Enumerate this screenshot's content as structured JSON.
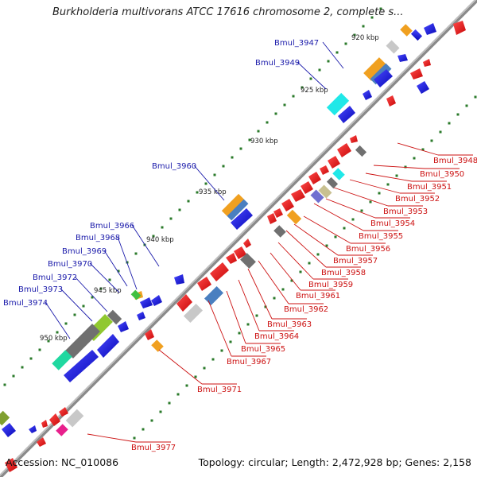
{
  "title": "Burkholderia multivorans ATCC 17616 chromosome 2, complete s...",
  "footer": {
    "accession": "Accession: NC_010086",
    "topology": "Topology: circular; Length: 2,472,928 bp; Genes: 2,158"
  },
  "colors": {
    "backbone": "#7a7a7a",
    "forward": "#1010e0",
    "reverse": "#ee1111",
    "label_forward": "#1a1aaa",
    "label_reverse": "#cc1111",
    "tick": "#2a7a2a"
  },
  "ticks": [
    {
      "label": "920 kbp"
    },
    {
      "label": "925 kbp"
    },
    {
      "label": "930 kbp"
    },
    {
      "label": "935 kbp"
    },
    {
      "label": "940 kbp"
    },
    {
      "label": "945 kbp"
    },
    {
      "label": "950 kbp"
    }
  ],
  "forward_labels": [
    {
      "label": "Bmul_3947"
    },
    {
      "label": "Bmul_3949"
    },
    {
      "label": "Bmul_3960"
    },
    {
      "label": "Bmul_3966"
    },
    {
      "label": "Bmul_3968"
    },
    {
      "label": "Bmul_3969"
    },
    {
      "label": "Bmul_3970"
    },
    {
      "label": "Bmul_3972"
    },
    {
      "label": "Bmul_3973"
    },
    {
      "label": "Bmul_3974"
    }
  ],
  "reverse_labels": [
    {
      "label": "Bmul_3948"
    },
    {
      "label": "Bmul_3950"
    },
    {
      "label": "Bmul_3951"
    },
    {
      "label": "Bmul_3952"
    },
    {
      "label": "Bmul_3953"
    },
    {
      "label": "Bmul_3954"
    },
    {
      "label": "Bmul_3955"
    },
    {
      "label": "Bmul_3956"
    },
    {
      "label": "Bmul_3957"
    },
    {
      "label": "Bmul_3958"
    },
    {
      "label": "Bmul_3959"
    },
    {
      "label": "Bmul_3961"
    },
    {
      "label": "Bmul_3962"
    },
    {
      "label": "Bmul_3963"
    },
    {
      "label": "Bmul_3964"
    },
    {
      "label": "Bmul_3965"
    },
    {
      "label": "Bmul_3967"
    },
    {
      "label": "Bmul_3971"
    },
    {
      "label": "Bmul_3977"
    }
  ]
}
